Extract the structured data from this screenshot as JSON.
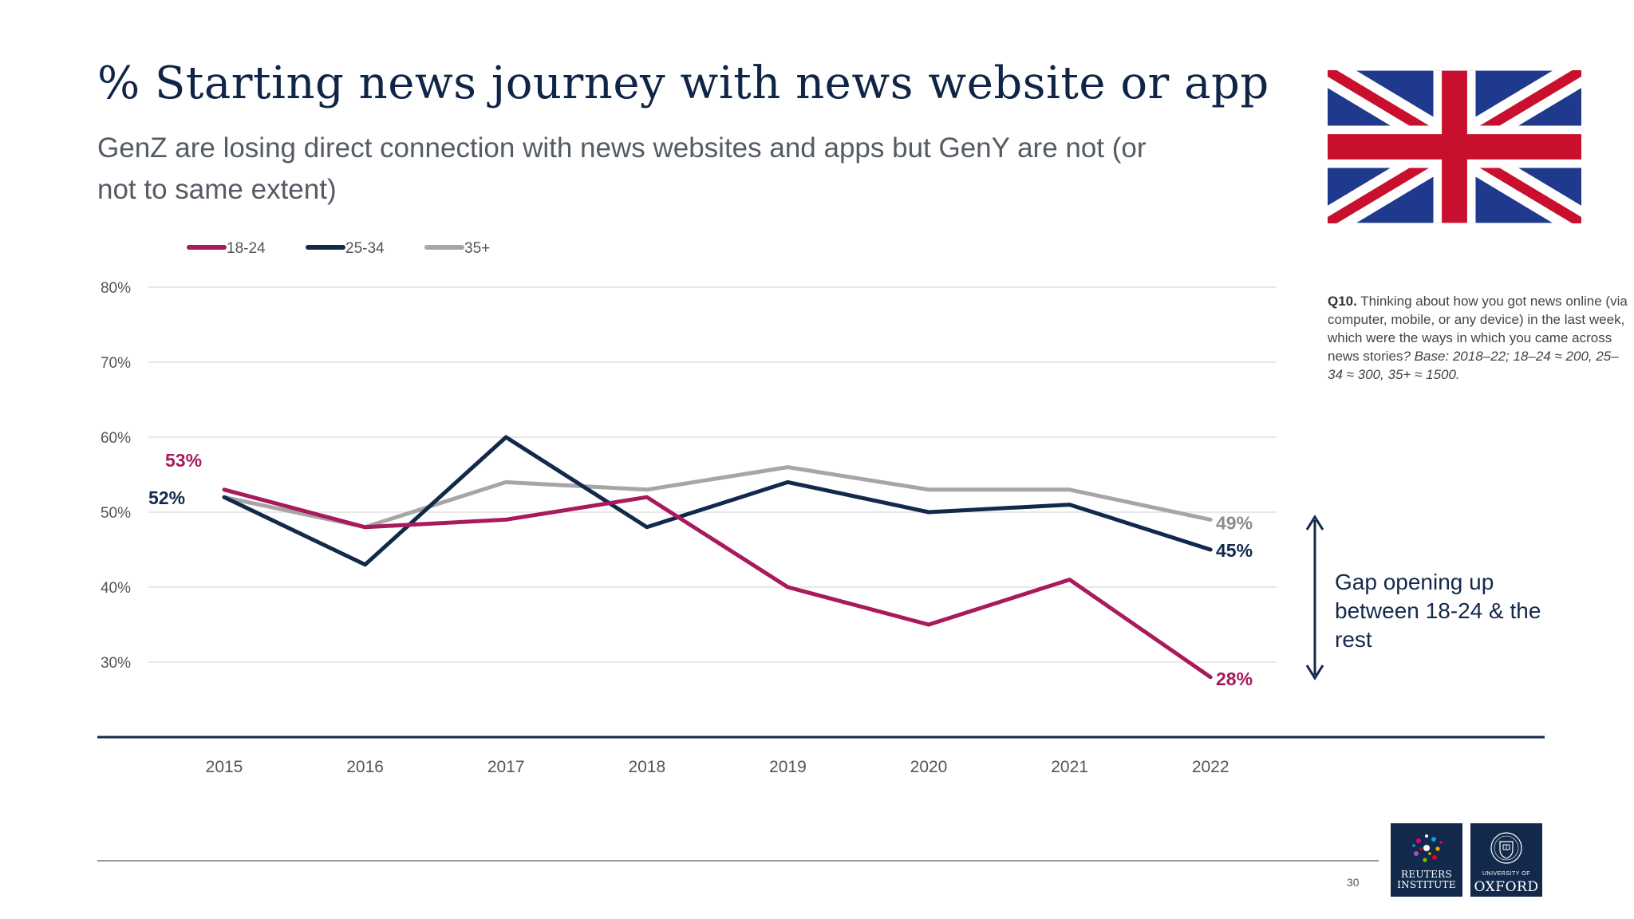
{
  "header": {
    "title": "% Starting news journey with news website or app",
    "subtitle": "GenZ are losing direct connection with news websites and apps but GenY are not (or not to same extent)"
  },
  "note": {
    "question_id": "Q10.",
    "question_text": " Thinking about how you got news online (via computer, mobile, or any device) in the last week, which were the ways in which you came across news stories",
    "base_text": "? Base: 2018–22; 18–24 ≈ 200, 25–34 ≈ 300, 35+ ≈ 1500."
  },
  "annotation": {
    "gap_text": "Gap opening up between 18-24 & the rest"
  },
  "footer": {
    "page_number": "30",
    "reuters_logo_text": "REUTERS INSTITUTE",
    "oxford_logo_small": "UNIVERSITY OF",
    "oxford_logo_big": "OXFORD"
  },
  "colors": {
    "c18_24": "#a81a5c",
    "c25_34": "#13294b",
    "c35_plus": "#a6a6a6",
    "flag_blue": "#1f3a8c",
    "flag_red": "#c8102e"
  },
  "icons": {
    "flag": "union-jack-flag-icon",
    "gap_arrow": "double-headed-arrow-icon"
  },
  "chart_data": {
    "type": "line",
    "title": "% Starting news journey with news website or app",
    "subtitle": "GenZ are losing direct connection with news websites and apps but GenY are not (or not to same extent)",
    "x": [
      "2015",
      "2016",
      "2017",
      "2018",
      "2019",
      "2020",
      "2021",
      "2022"
    ],
    "y_ticks": [
      "80%",
      "70%",
      "60%",
      "50%",
      "40%",
      "30%"
    ],
    "ylim": [
      20,
      80
    ],
    "grid": true,
    "legend_position": "top-left",
    "series": [
      {
        "name": "18-24",
        "color": "#a81a5c",
        "values": [
          53,
          48,
          49,
          52,
          40,
          35,
          41,
          28
        ],
        "start_label": "53%",
        "end_label": "28%"
      },
      {
        "name": "25-34",
        "color": "#13294b",
        "values": [
          52,
          43,
          60,
          48,
          54,
          50,
          51,
          45
        ],
        "start_label": "52%",
        "end_label": "45%"
      },
      {
        "name": "35+",
        "color": "#a6a6a6",
        "values": [
          52,
          48,
          54,
          53,
          56,
          53,
          53,
          49
        ],
        "end_label": "49%"
      }
    ]
  }
}
